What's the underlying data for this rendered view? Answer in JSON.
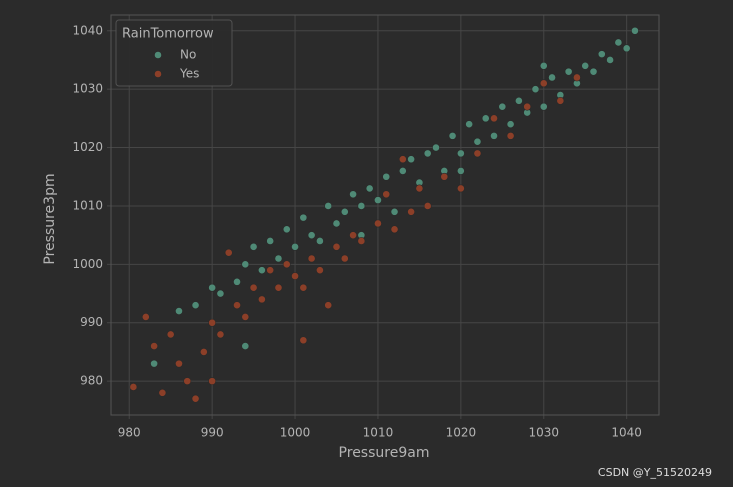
{
  "chart_data": {
    "type": "scatter",
    "x_label": "Pressure9am",
    "y_label": "Pressure3pm",
    "legend_title": "RainTomorrow",
    "legend": "upper left",
    "grid": true,
    "xlim": [
      977.8,
      1043.9
    ],
    "ylim": [
      974.2,
      1042.7
    ],
    "xticks": [
      980,
      990,
      1000,
      1010,
      1020,
      1030,
      1040
    ],
    "yticks": [
      980,
      990,
      1000,
      1010,
      1020,
      1030,
      1040
    ],
    "series": [
      {
        "name": "No",
        "color": "#4f8a76",
        "x": [
          983,
          986,
          988,
          990,
          991,
          993,
          994,
          995,
          996,
          997,
          998,
          999,
          1000,
          1001,
          1002,
          1003,
          1004,
          1005,
          1006,
          1007,
          1008,
          1009,
          1010,
          1011,
          1012,
          1013,
          1014,
          1015,
          1016,
          1017,
          1018,
          1019,
          1020,
          1021,
          1022,
          1023,
          1024,
          1025,
          1026,
          1027,
          1028,
          1029,
          1030,
          1031,
          1032,
          1033,
          1034,
          1035,
          1036,
          1037,
          1038,
          1039,
          1040,
          1041,
          994,
          1008,
          1030,
          1020
        ],
        "values": [
          983,
          992,
          993,
          996,
          995,
          997,
          1000,
          1003,
          999,
          1004,
          1001,
          1006,
          1003,
          1008,
          1005,
          1004,
          1010,
          1007,
          1009,
          1012,
          1010,
          1013,
          1011,
          1015,
          1009,
          1016,
          1018,
          1014,
          1019,
          1020,
          1016,
          1022,
          1019,
          1024,
          1021,
          1025,
          1022,
          1027,
          1024,
          1028,
          1026,
          1030,
          1027,
          1032,
          1029,
          1033,
          1031,
          1034,
          1033,
          1036,
          1035,
          1038,
          1037,
          1040,
          986,
          1005,
          1034,
          1016
        ]
      },
      {
        "name": "Yes",
        "color": "#8c3f28",
        "x": [
          980.5,
          982,
          983,
          984,
          985,
          986,
          987,
          988,
          989,
          990,
          991,
          992,
          993,
          994,
          995,
          996,
          997,
          998,
          999,
          1000,
          1001,
          1002,
          1003,
          1004,
          1005,
          1006,
          1007,
          1008,
          1010,
          1011,
          1012,
          1013,
          1014,
          1015,
          1016,
          1018,
          1020,
          1022,
          1024,
          1026,
          1028,
          1030,
          1032,
          1034,
          1001,
          990
        ],
        "values": [
          979,
          991,
          986,
          978,
          988,
          983,
          980,
          977,
          985,
          990,
          988,
          1002,
          993,
          991,
          996,
          994,
          999,
          996,
          1000,
          998,
          996,
          1001,
          999,
          993,
          1003,
          1001,
          1005,
          1004,
          1007,
          1012,
          1006,
          1018,
          1009,
          1013,
          1010,
          1015,
          1013,
          1019,
          1025,
          1022,
          1027,
          1031,
          1028,
          1032,
          987,
          980
        ]
      }
    ],
    "watermark": "CSDN @Y_51520249"
  }
}
